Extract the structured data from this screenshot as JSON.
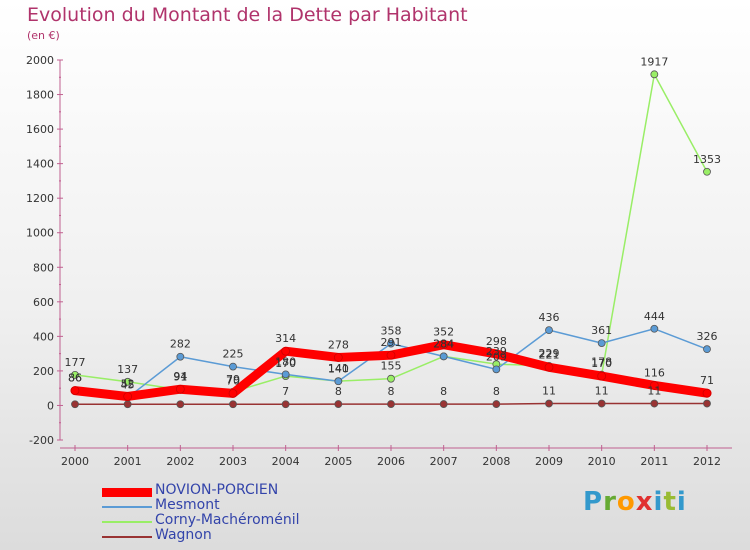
{
  "title": "Evolution du Montant de la Dette par Habitant",
  "unit_label": "(en €)",
  "brand": "Proxiti",
  "chart_data": {
    "type": "line",
    "x": [
      "2000",
      "2001",
      "2002",
      "2003",
      "2004",
      "2005",
      "2006",
      "2007",
      "2008",
      "2009",
      "2010",
      "2011",
      "2012"
    ],
    "yticks": [
      "-200",
      "0",
      "200",
      "400",
      "600",
      "800",
      "1000",
      "1200",
      "1400",
      "1600",
      "1800",
      "2000"
    ],
    "ylim": [
      -200,
      2000
    ],
    "grid": false,
    "legend_position": "bottom-left",
    "series": [
      {
        "name": "NOVION-PORCIEN",
        "color": "#ff0000",
        "values": [
          86,
          52,
          94,
          70,
          314,
          278,
          291,
          352,
          298,
          221,
          170,
          116,
          71
        ],
        "labels": [
          "86",
          "52",
          "94",
          "70",
          "314",
          "278",
          "291",
          "352",
          "298",
          "221",
          "170",
          "116",
          "71"
        ]
      },
      {
        "name": "Mesmont",
        "color": "#5b9bd5",
        "values": [
          86,
          45,
          282,
          225,
          180,
          140,
          358,
          284,
          209,
          436,
          361,
          444,
          326
        ],
        "labels": [
          "86",
          "45",
          "282",
          "225",
          "180",
          "140",
          "358",
          "284",
          "209",
          "436",
          "361",
          "444",
          "326"
        ]
      },
      {
        "name": "Corny-Machéroménil",
        "color": "#99ee66",
        "values": [
          177,
          137,
          91,
          79,
          170,
          141,
          155,
          284,
          239,
          229,
          178,
          1917,
          1353
        ],
        "labels": [
          "177",
          "137",
          "91",
          "79",
          "170",
          "141",
          "155",
          "284",
          "239",
          "229",
          "178",
          "1917",
          "1353"
        ]
      },
      {
        "name": "Wagnon",
        "color": "#993333",
        "values": [
          7,
          7,
          7,
          7,
          7,
          8,
          8,
          8,
          8,
          11,
          11,
          11,
          11
        ],
        "labels": [
          "",
          "",
          "",
          "",
          "7",
          "8",
          "8",
          "8",
          "8",
          "11",
          "11",
          "11",
          ""
        ]
      }
    ]
  }
}
